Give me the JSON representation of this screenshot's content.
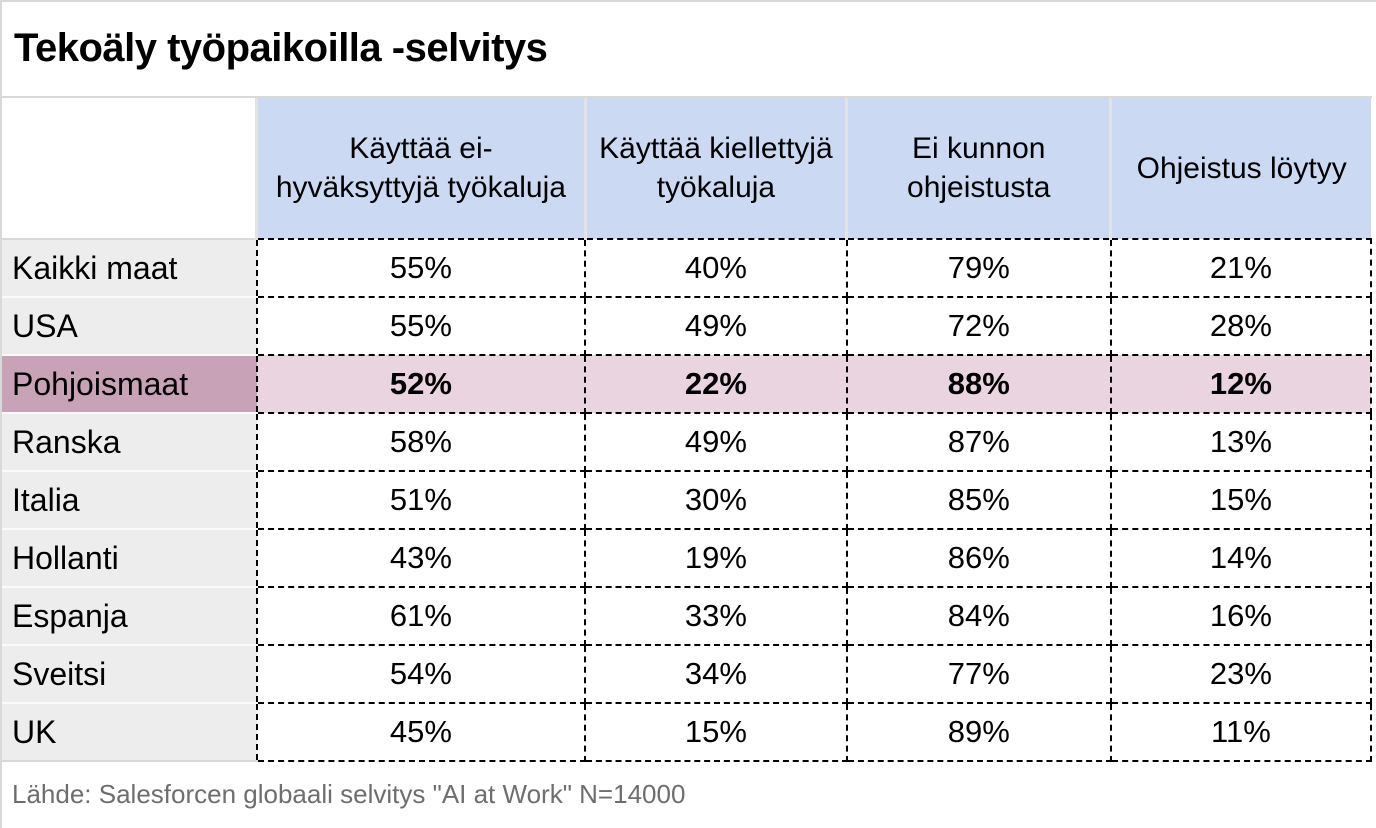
{
  "title": "Tekoäly työpaikoilla -selvitys",
  "table": {
    "columns": [
      "Käyttää ei-hyväksyttyjä työkaluja",
      "Käyttää kiellettyjä työkaluja",
      "Ei kunnon ohjeistusta",
      "Ohjeistus löytyy"
    ],
    "rows": [
      {
        "label": "Kaikki maat",
        "values": [
          "55%",
          "40%",
          "79%",
          "21%"
        ],
        "highlight": false
      },
      {
        "label": "USA",
        "values": [
          "55%",
          "49%",
          "72%",
          "28%"
        ],
        "highlight": false
      },
      {
        "label": "Pohjoismaat",
        "values": [
          "52%",
          "22%",
          "88%",
          "12%"
        ],
        "highlight": true
      },
      {
        "label": "Ranska",
        "values": [
          "58%",
          "49%",
          "87%",
          "13%"
        ],
        "highlight": false
      },
      {
        "label": "Italia",
        "values": [
          "51%",
          "30%",
          "85%",
          "15%"
        ],
        "highlight": false
      },
      {
        "label": "Hollanti",
        "values": [
          "43%",
          "19%",
          "86%",
          "14%"
        ],
        "highlight": false
      },
      {
        "label": "Espanja",
        "values": [
          "61%",
          "33%",
          "84%",
          "16%"
        ],
        "highlight": false
      },
      {
        "label": "Sveitsi",
        "values": [
          "54%",
          "34%",
          "77%",
          "23%"
        ],
        "highlight": false
      },
      {
        "label": "UK",
        "values": [
          "45%",
          "15%",
          "89%",
          "11%"
        ],
        "highlight": false
      }
    ]
  },
  "footer": {
    "source_text": "Lähde: Salesforcen globaali selvitys \"AI at Work\" N=14000"
  },
  "colors": {
    "header_bg": "#cbd9f3",
    "row_label_bg": "#ededed",
    "highlight_label_bg": "#c8a2b6",
    "highlight_cell_bg": "#e9d4df",
    "grid_line": "#d9d9d9",
    "cell_border": "#000000",
    "source_text_color": "#6e6e6e"
  },
  "chart_data": {
    "type": "table",
    "title": "Tekoäly työpaikoilla -selvitys",
    "columns": [
      "Käyttää ei-hyväksyttyjä työkaluja",
      "Käyttää kiellettyjä työkaluja",
      "Ei kunnon ohjeistusta",
      "Ohjeistus löytyy"
    ],
    "categories": [
      "Kaikki maat",
      "USA",
      "Pohjoismaat",
      "Ranska",
      "Italia",
      "Hollanti",
      "Espanja",
      "Sveitsi",
      "UK"
    ],
    "series": [
      {
        "name": "Käyttää ei-hyväksyttyjä työkaluja",
        "values": [
          55,
          55,
          52,
          58,
          51,
          43,
          61,
          54,
          45
        ]
      },
      {
        "name": "Käyttää kiellettyjä työkaluja",
        "values": [
          40,
          49,
          22,
          49,
          30,
          19,
          33,
          34,
          15
        ]
      },
      {
        "name": "Ei kunnon ohjeistusta",
        "values": [
          79,
          72,
          88,
          87,
          85,
          86,
          84,
          77,
          89
        ]
      },
      {
        "name": "Ohjeistus löytyy",
        "values": [
          21,
          28,
          12,
          13,
          15,
          14,
          16,
          23,
          11
        ]
      }
    ],
    "unit": "%",
    "highlighted_category": "Pohjoismaat",
    "source": "Lähde: Salesforcen globaali selvitys \"AI at Work\" N=14000"
  }
}
